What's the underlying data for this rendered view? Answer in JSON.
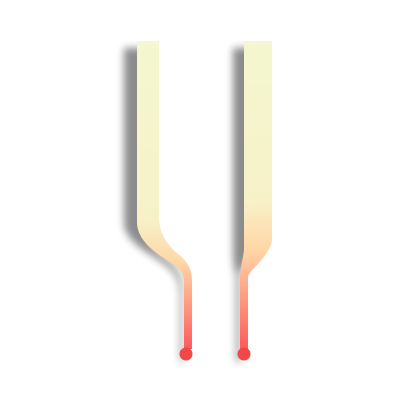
{
  "colors": {
    "background": "#ffffff",
    "strip_top": "#f4f7cf",
    "strip_mid": "#f7f1c8",
    "strip_warm": "#ffd6a6",
    "strip_bottom": "#ff5a5a",
    "pin_head": "#f04848",
    "shadow": "#000000"
  },
  "icons": {
    "left_strip": "bent-tapered-strip-icon",
    "right_strip": "straight-tapered-strip-icon",
    "pin_heads": "round-dot-icon"
  }
}
